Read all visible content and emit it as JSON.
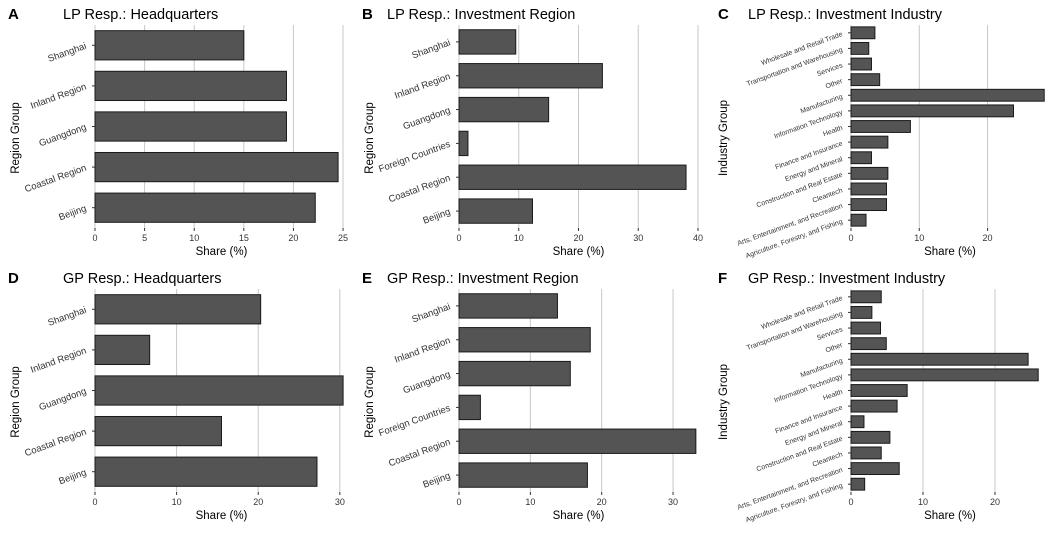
{
  "chart_data": [
    {
      "id": "A",
      "letter": "A",
      "type": "bar",
      "orientation": "horizontal",
      "title": "LP Resp.: Headquarters",
      "xlabel": "Share (%)",
      "ylabel": "Region Group",
      "xlim": [
        0,
        25.5
      ],
      "xticks": [
        0,
        5,
        10,
        15,
        20,
        25
      ],
      "categories": [
        "Shanghai",
        "Inland Region",
        "Guangdong",
        "Coastal Region",
        "Beijing"
      ],
      "values": [
        15.0,
        19.3,
        19.3,
        24.5,
        22.2
      ]
    },
    {
      "id": "B",
      "letter": "B",
      "type": "bar",
      "orientation": "horizontal",
      "title": "LP Resp.: Investment Region",
      "xlabel": "Share (%)",
      "ylabel": "Region Group",
      "xlim": [
        0,
        40
      ],
      "xticks": [
        0,
        10,
        20,
        30,
        40
      ],
      "categories": [
        "Shanghai",
        "Inland Region",
        "Guangdong",
        "Foreign Countries",
        "Coastal Region",
        "Beijing"
      ],
      "values": [
        9.5,
        24.0,
        15.0,
        1.5,
        38.0,
        12.3
      ]
    },
    {
      "id": "C",
      "letter": "C",
      "type": "bar",
      "orientation": "horizontal",
      "title": "LP Resp.: Investment Industry",
      "xlabel": "Share (%)",
      "ylabel": "Industry Group",
      "xlim": [
        0,
        29
      ],
      "xticks": [
        0,
        10,
        20
      ],
      "categories": [
        "Wholesale and Retail Trade",
        "Transportation and Warehousing",
        "Services",
        "Other",
        "Manufacturing",
        "Information Technology",
        "Health",
        "Finance and Insurance",
        "Energy and Mineral",
        "Construction and Real Estate",
        "Cleantech",
        "Arts, Entertainment, and Recreation",
        "Agriculture, Forestry, and Fishing"
      ],
      "values": [
        3.5,
        2.6,
        3.0,
        4.2,
        28.3,
        23.8,
        8.7,
        5.4,
        3.0,
        5.4,
        5.2,
        5.2,
        2.2
      ]
    },
    {
      "id": "D",
      "letter": "D",
      "type": "bar",
      "orientation": "horizontal",
      "title": "GP Resp.: Headquarters",
      "xlabel": "Share (%)",
      "ylabel": "Region Group",
      "xlim": [
        0,
        31
      ],
      "xticks": [
        0,
        10,
        20,
        30
      ],
      "categories": [
        "Shanghai",
        "Inland Region",
        "Guangdong",
        "Coastal Region",
        "Beijing"
      ],
      "values": [
        20.3,
        6.7,
        30.4,
        15.5,
        27.2
      ]
    },
    {
      "id": "E",
      "letter": "E",
      "type": "bar",
      "orientation": "horizontal",
      "title": "GP Resp.: Investment Region",
      "xlabel": "Share (%)",
      "ylabel": "Region Group",
      "xlim": [
        0,
        33.5
      ],
      "xticks": [
        0,
        10,
        20,
        30
      ],
      "categories": [
        "Shanghai",
        "Inland Region",
        "Guangdong",
        "Foreign Countries",
        "Coastal Region",
        "Beijing"
      ],
      "values": [
        13.8,
        18.4,
        15.6,
        3.0,
        33.2,
        18.0
      ]
    },
    {
      "id": "F",
      "letter": "F",
      "type": "bar",
      "orientation": "horizontal",
      "title": "GP Resp.: Investment Industry",
      "xlabel": "Share (%)",
      "ylabel": "Industry Group",
      "xlim": [
        0,
        27.5
      ],
      "xticks": [
        0,
        10,
        20
      ],
      "categories": [
        "Wholesale and Retail Trade",
        "Transportation and Warehousing",
        "Services",
        "Other",
        "Manufacturing",
        "Information Technology",
        "Health",
        "Finance and Insurance",
        "Energy and Mineral",
        "Construction and Real Estate",
        "Cleantech",
        "Arts, Entertainment, and Recreation",
        "Agriculture, Forestry, and Fishing"
      ],
      "values": [
        4.2,
        2.9,
        4.1,
        4.9,
        24.6,
        26.0,
        7.8,
        6.4,
        1.8,
        5.4,
        4.2,
        6.7,
        1.9
      ]
    }
  ]
}
